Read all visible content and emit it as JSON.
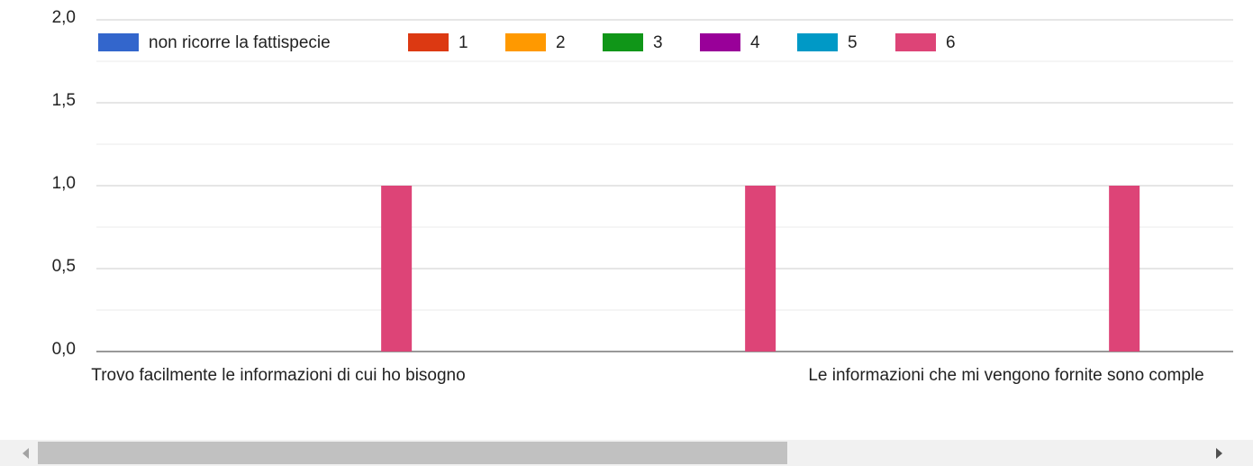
{
  "chart_data": {
    "type": "bar",
    "categories": [
      "Trovo facilmente le informazioni di cui ho bisogno",
      null,
      "Le informazioni che mi vengono fornite sono comple"
    ],
    "series": [
      {
        "name": "non ricorre la fattispecie",
        "color": "#3366cc",
        "values": [
          0,
          0,
          0
        ]
      },
      {
        "name": "1",
        "color": "#dc3912",
        "values": [
          0,
          0,
          0
        ]
      },
      {
        "name": "2",
        "color": "#ff9900",
        "values": [
          0,
          0,
          0
        ]
      },
      {
        "name": "3",
        "color": "#109618",
        "values": [
          0,
          0,
          0
        ]
      },
      {
        "name": "4",
        "color": "#990099",
        "values": [
          0,
          0,
          0
        ]
      },
      {
        "name": "5",
        "color": "#0099c6",
        "values": [
          0,
          0,
          0
        ]
      },
      {
        "name": "6",
        "color": "#dd4477",
        "values": [
          1,
          1,
          1
        ]
      }
    ],
    "ylim": [
      0,
      2
    ],
    "yticks": [
      {
        "value": 0,
        "label": "0,0"
      },
      {
        "value": 0.5,
        "label": "0,5"
      },
      {
        "value": 1,
        "label": "1,0"
      },
      {
        "value": 1.5,
        "label": "1,5"
      },
      {
        "value": 2,
        "label": "2,0"
      }
    ],
    "minor_yticks": [
      0.25,
      0.75,
      1.25,
      1.75
    ],
    "grid": true,
    "legend": "top"
  }
}
